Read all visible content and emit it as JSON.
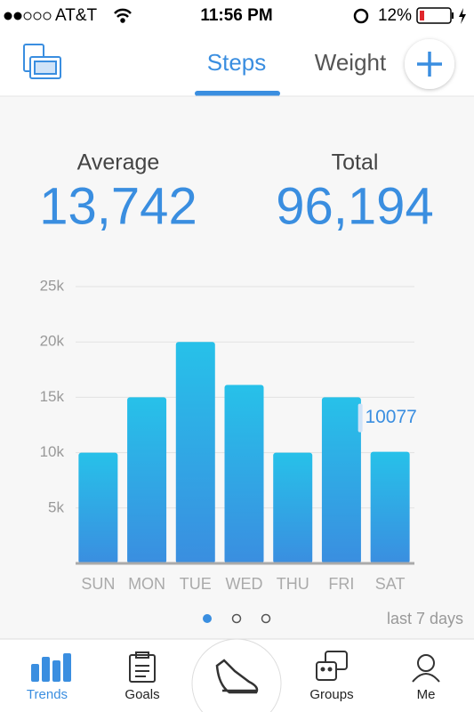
{
  "status_bar": {
    "carrier": "AT&T",
    "time": "11:56 PM",
    "battery": "12%"
  },
  "tabs": [
    "Steps",
    "Weight"
  ],
  "summary": {
    "average_label": "Average",
    "average": "13,742",
    "total_label": "Total",
    "total": "96,194"
  },
  "chart_data": {
    "type": "bar",
    "categories": [
      "SUN",
      "MON",
      "TUE",
      "WED",
      "THU",
      "FRI",
      "SAT"
    ],
    "values": [
      10000,
      15000,
      20000,
      16117,
      10000,
      15000,
      10077
    ],
    "color_top": "#27c1e9",
    "color_bottom": "#3a8ee0",
    "ylim": [
      0,
      25000
    ],
    "yticks": [
      {
        "value": 5000,
        "label": "5k"
      },
      {
        "value": 10000,
        "label": "10k"
      },
      {
        "value": 15000,
        "label": "15k"
      },
      {
        "value": 20000,
        "label": "20k"
      },
      {
        "value": 25000,
        "label": "25k"
      }
    ],
    "grid": true,
    "labeled_index": 6
  },
  "period": "last 7 days",
  "nav": [
    "Trends",
    "Goals",
    "Groups",
    "Me"
  ]
}
